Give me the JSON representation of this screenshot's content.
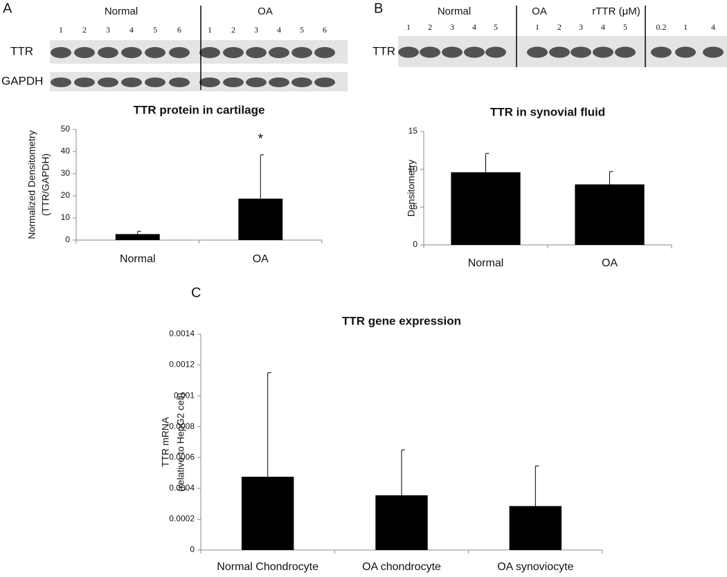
{
  "panel_labels": [
    "A",
    "B",
    "C"
  ],
  "blots": [
    {
      "groups": [
        {
          "name": "Normal",
          "lanes": [
            "1",
            "2",
            "3",
            "4",
            "5",
            "6"
          ]
        },
        {
          "name": "OA",
          "lanes": [
            "1",
            "2",
            "3",
            "4",
            "5",
            "6"
          ]
        }
      ],
      "rows": [
        "TTR",
        "GAPDH"
      ]
    },
    {
      "groups": [
        {
          "name": "Normal",
          "lanes": [
            "1",
            "2",
            "3",
            "4",
            "5"
          ]
        },
        {
          "name": "OA",
          "lanes": [
            "1",
            "2",
            "3",
            "4",
            "5"
          ]
        },
        {
          "name": "rTTR (μM)",
          "lanes": [
            "0.2",
            "1",
            "4"
          ]
        }
      ],
      "rows": [
        "TTR"
      ]
    }
  ],
  "chart_data": [
    {
      "type": "bar",
      "title": "TTR protein in cartilage",
      "y_label": [
        "Normalized Densitometry",
        "(TTR/GAPDH)"
      ],
      "categories": [
        "Normal",
        "OA"
      ],
      "values": [
        2.7,
        18.7
      ],
      "errors": [
        1.3,
        19.8
      ],
      "color": "#000000",
      "annotation": "*",
      "ylim": [
        0,
        50
      ],
      "yticks": [
        0,
        10,
        20,
        30,
        40,
        50
      ]
    },
    {
      "type": "bar",
      "title": "TTR in synovial fluid",
      "y_label": [
        "Densitometry"
      ],
      "categories": [
        "Normal",
        "OA"
      ],
      "values": [
        9.6,
        8.0
      ],
      "errors": [
        2.5,
        1.7
      ],
      "color": "#000000",
      "ylim": [
        0,
        15
      ],
      "yticks": [
        0,
        5,
        10,
        15
      ]
    },
    {
      "type": "bar",
      "title": "TTR gene expression",
      "y_label": [
        "TTR mRNA",
        "(relative to HepG2 cell)"
      ],
      "categories": [
        "Normal Chondrocyte",
        "OA chondrocyte",
        "OA synoviocyte"
      ],
      "values": [
        0.000475,
        0.000355,
        0.000285
      ],
      "errors": [
        0.000675,
        0.000295,
        0.00026
      ],
      "color": "#000000",
      "ylim": [
        0,
        0.0014
      ],
      "yticks": [
        0,
        0.0002,
        0.0004,
        0.0006,
        0.0008,
        0.001,
        0.0012,
        0.0014
      ]
    }
  ]
}
